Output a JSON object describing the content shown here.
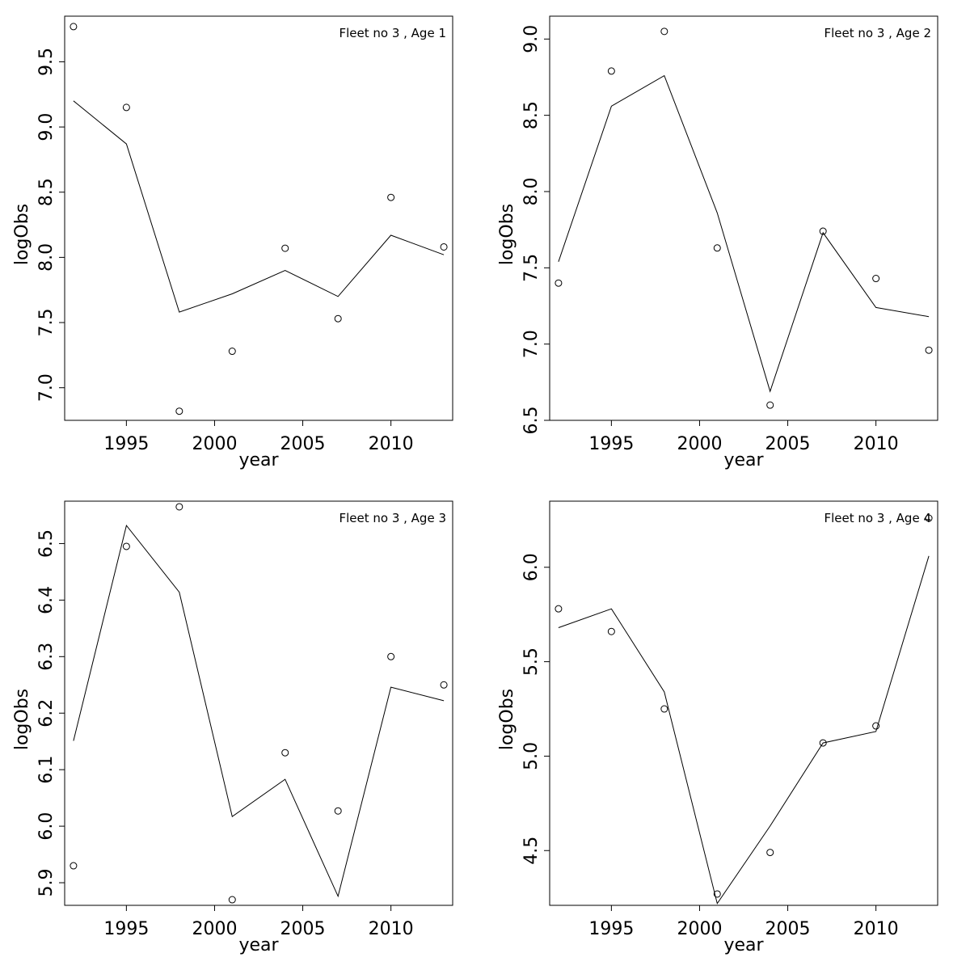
{
  "chart_data": [
    {
      "type": "line",
      "title": "Fleet no 3 , Age 1",
      "xlabel": "year",
      "ylabel": "logObs",
      "xlim": [
        1991.5,
        2013.5
      ],
      "ylim": [
        6.75,
        9.85
      ],
      "xticks": [
        1995,
        2000,
        2005,
        2010
      ],
      "yticks": [
        7.0,
        7.5,
        8.0,
        8.5,
        9.0,
        9.5
      ],
      "ytick_labels": [
        "7.0",
        "7.5",
        "8.0",
        "8.5",
        "9.0",
        "9.5"
      ],
      "x": [
        1992,
        1995,
        1998,
        2001,
        2004,
        2007,
        2010,
        2013
      ],
      "observed": [
        9.77,
        9.15,
        6.82,
        7.28,
        8.07,
        7.53,
        8.46,
        8.08
      ],
      "fitted": [
        9.2,
        8.87,
        7.58,
        7.72,
        7.9,
        7.7,
        8.17,
        8.02
      ]
    },
    {
      "type": "line",
      "title": "Fleet no 3 , Age 2",
      "xlabel": "year",
      "ylabel": "logObs",
      "xlim": [
        1991.5,
        2013.5
      ],
      "ylim": [
        6.5,
        9.15
      ],
      "xticks": [
        1995,
        2000,
        2005,
        2010
      ],
      "yticks": [
        6.5,
        7.0,
        7.5,
        8.0,
        8.5,
        9.0
      ],
      "ytick_labels": [
        "6.5",
        "7.0",
        "7.5",
        "8.0",
        "8.5",
        "9.0"
      ],
      "x": [
        1992,
        1995,
        1998,
        2001,
        2004,
        2007,
        2010,
        2013
      ],
      "observed": [
        7.4,
        8.79,
        9.05,
        7.63,
        6.6,
        7.74,
        7.43,
        6.96
      ],
      "fitted": [
        7.54,
        8.56,
        8.76,
        7.86,
        6.69,
        7.73,
        7.24,
        7.18
      ]
    },
    {
      "type": "line",
      "title": "Fleet no 3 , Age 3",
      "xlabel": "year",
      "ylabel": "logObs",
      "xlim": [
        1991.5,
        2013.5
      ],
      "ylim": [
        5.86,
        6.575
      ],
      "xticks": [
        1995,
        2000,
        2005,
        2010
      ],
      "yticks": [
        5.9,
        6.0,
        6.1,
        6.2,
        6.3,
        6.4,
        6.5
      ],
      "ytick_labels": [
        "5.9",
        "6.0",
        "6.1",
        "6.2",
        "6.3",
        "6.4",
        "6.5"
      ],
      "x": [
        1992,
        1995,
        1998,
        2001,
        2004,
        2007,
        2010,
        2013
      ],
      "observed": [
        5.93,
        6.495,
        6.565,
        5.87,
        6.13,
        6.027,
        6.3,
        6.25
      ],
      "fitted": [
        6.151,
        6.532,
        6.414,
        6.017,
        6.083,
        5.876,
        6.246,
        6.222
      ]
    },
    {
      "type": "line",
      "title": "Fleet no 3 , Age 4",
      "xlabel": "year",
      "ylabel": "logObs",
      "xlim": [
        1991.5,
        2013.5
      ],
      "ylim": [
        4.21,
        6.35
      ],
      "xticks": [
        1995,
        2000,
        2005,
        2010
      ],
      "yticks": [
        4.5,
        5.0,
        5.5,
        6.0
      ],
      "ytick_labels": [
        "4.5",
        "5.0",
        "5.5",
        "6.0"
      ],
      "x": [
        1992,
        1995,
        1998,
        2001,
        2004,
        2007,
        2010,
        2013
      ],
      "observed": [
        5.78,
        5.66,
        5.25,
        4.27,
        4.49,
        5.07,
        5.16,
        6.26
      ],
      "fitted": [
        5.68,
        5.78,
        5.34,
        4.22,
        4.63,
        5.07,
        5.13,
        6.06
      ]
    }
  ]
}
